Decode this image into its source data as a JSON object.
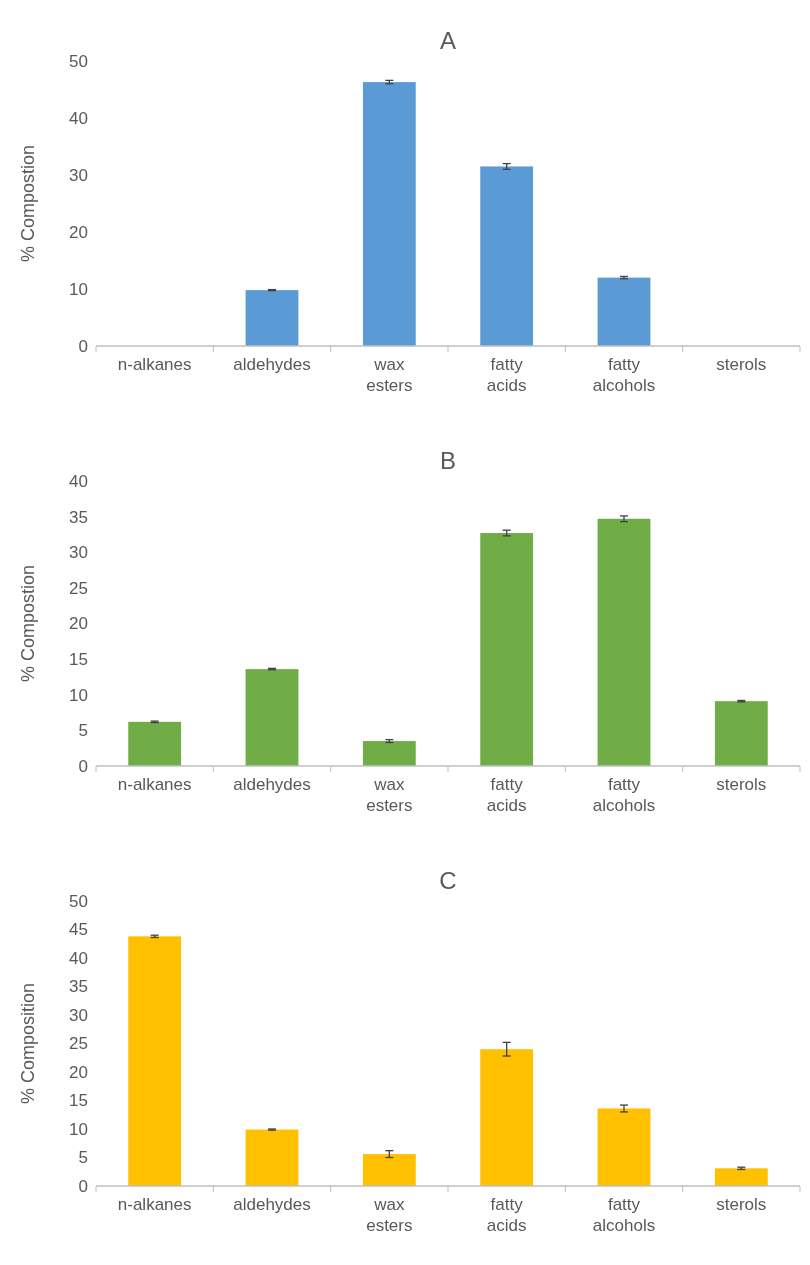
{
  "chart_data": [
    {
      "type": "bar",
      "title": "A",
      "ylabel": "% Compostion",
      "categories": [
        "n-alkanes",
        "aldehydes",
        "wax esters",
        "fatty acids",
        "fatty alcohols",
        "sterols"
      ],
      "values": [
        0,
        9.8,
        46.3,
        31.5,
        12,
        0
      ],
      "errors": [
        null,
        0.1,
        0.3,
        0.5,
        0.2,
        null
      ],
      "color": "#5b9bd5",
      "ylim": [
        0,
        50
      ],
      "yticks": [
        0,
        10,
        20,
        30,
        40,
        50
      ],
      "grid": false
    },
    {
      "type": "bar",
      "title": "B",
      "ylabel": "% Compostion",
      "categories": [
        "n-alkanes",
        "aldehydes",
        "wax esters",
        "fatty acids",
        "fatty alcohols",
        "sterols"
      ],
      "values": [
        6.2,
        13.6,
        3.5,
        32.7,
        34.7,
        9.1
      ],
      "errors": [
        0.1,
        0.1,
        0.2,
        0.4,
        0.4,
        0.1
      ],
      "color": "#70ad47",
      "ylim": [
        0,
        40
      ],
      "yticks": [
        0,
        5,
        10,
        15,
        20,
        25,
        30,
        35,
        40
      ],
      "grid": false
    },
    {
      "type": "bar",
      "title": "C",
      "ylabel": "% Composition",
      "categories": [
        "n-alkanes",
        "aldehydes",
        "wax esters",
        "fatty acids",
        "fatty alcohols",
        "sterols"
      ],
      "values": [
        43.8,
        9.9,
        5.6,
        24,
        13.6,
        3.1
      ],
      "errors": [
        0.2,
        0.1,
        0.6,
        1.2,
        0.6,
        0.2
      ],
      "color": "#ffc000",
      "ylim": [
        0,
        50
      ],
      "yticks": [
        0,
        5,
        10,
        15,
        20,
        25,
        30,
        35,
        40,
        45,
        50
      ],
      "grid": false
    }
  ]
}
